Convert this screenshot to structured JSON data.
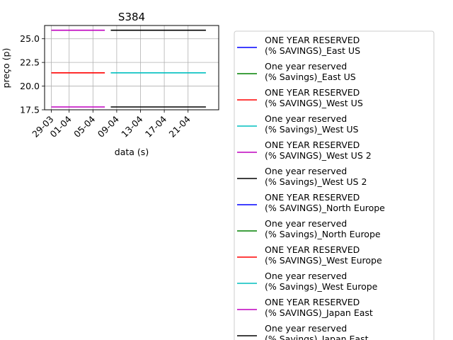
{
  "chart_data": {
    "type": "line",
    "title": "S384",
    "xlabel": "data (s)",
    "ylabel": "preço (p)",
    "x_ticks": [
      "29-03",
      "01-04",
      "05-04",
      "09-04",
      "13-04",
      "17-04",
      "21-04"
    ],
    "y_ticks": [
      "17.5",
      "20.0",
      "22.5",
      "25.0"
    ],
    "ylim": [
      17.5,
      26.4
    ],
    "grid": true,
    "legend_placement": "right, outside plot",
    "series": [
      {
        "name": "ONE YEAR RESERVED\n(% SAVINGS)_East US",
        "color": "#0000ff",
        "segments": []
      },
      {
        "name": "One year reserved\n(% Savings)_East US",
        "color": "#008000",
        "segments": []
      },
      {
        "name": "ONE YEAR RESERVED\n(% SAVINGS)_West US",
        "color": "#ff0000",
        "segments": [
          {
            "x": [
              "29-03",
              "07-04"
            ],
            "y": [
              21.4,
              21.4
            ]
          }
        ]
      },
      {
        "name": "One year reserved\n(% Savings)_West US",
        "color": "#00bfbf",
        "segments": [
          {
            "x": [
              "08-04",
              "24-04"
            ],
            "y": [
              21.4,
              21.4
            ]
          }
        ]
      },
      {
        "name": "ONE YEAR RESERVED\n(% SAVINGS)_West US 2",
        "color": "#bf00bf",
        "segments": [
          {
            "x": [
              "29-03",
              "07-04"
            ],
            "y": [
              25.9,
              25.9
            ]
          },
          {
            "x": [
              "29-03",
              "07-04"
            ],
            "y": [
              17.8,
              17.8
            ]
          }
        ]
      },
      {
        "name": "One year reserved\n(% Savings)_West US 2",
        "color": "#000000",
        "segments": [
          {
            "x": [
              "08-04",
              "24-04"
            ],
            "y": [
              25.9,
              25.9
            ]
          },
          {
            "x": [
              "08-04",
              "24-04"
            ],
            "y": [
              17.8,
              17.8
            ]
          }
        ]
      },
      {
        "name": "ONE YEAR RESERVED\n(% SAVINGS)_North Europe",
        "color": "#0000ff",
        "segments": []
      },
      {
        "name": "One year reserved\n(% Savings)_North Europe",
        "color": "#008000",
        "segments": []
      },
      {
        "name": "ONE YEAR RESERVED\n(% SAVINGS)_West Europe",
        "color": "#ff0000",
        "segments": []
      },
      {
        "name": "One year reserved\n(% Savings)_West Europe",
        "color": "#00bfbf",
        "segments": []
      },
      {
        "name": "ONE YEAR RESERVED\n(% SAVINGS)_Japan East",
        "color": "#bf00bf",
        "segments": []
      },
      {
        "name": "One year reserved\n(% Savings)_Japan East",
        "color": "#000000",
        "segments": []
      }
    ]
  }
}
